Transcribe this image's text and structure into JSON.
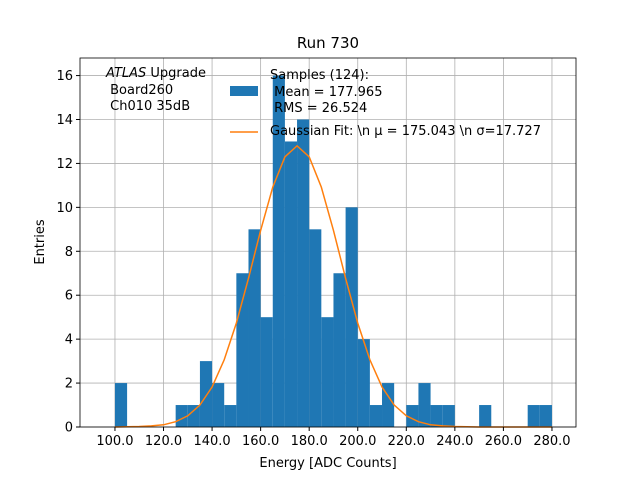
{
  "chart_data": {
    "type": "histogram",
    "title": "Run 730",
    "xlabel": "Energy [ADC Counts]",
    "ylabel": "Entries",
    "annotation": {
      "emphasis": "ATLAS",
      "text": " Upgrade\n Board260\n Ch010 35dB"
    },
    "bins": [
      100,
      105,
      110,
      115,
      120,
      125,
      130,
      135,
      140,
      145,
      150,
      155,
      160,
      165,
      170,
      175,
      180,
      185,
      190,
      195,
      200,
      205,
      210,
      215,
      220,
      225,
      230,
      235,
      240,
      245,
      250,
      255,
      260,
      265,
      270,
      275,
      280
    ],
    "series": [
      {
        "type": "histogram",
        "name": "Samples (124):\n Mean = 177.965\n RMS = 26.524",
        "color": "#1f77b4",
        "values": [
          2,
          0,
          0,
          0,
          0,
          1,
          1,
          3,
          2,
          1,
          7,
          9,
          5,
          16,
          13,
          14,
          9,
          5,
          7,
          10,
          4,
          1,
          2,
          0,
          1,
          2,
          1,
          1,
          0,
          0,
          1,
          0,
          0,
          0,
          1,
          1
        ]
      },
      {
        "type": "line",
        "name": "Gaussian Fit: \\n μ = 175.043 \\n σ=17.727",
        "color": "#ff7f0e",
        "x": [
          100,
          105,
          110,
          115,
          120,
          125,
          130,
          135,
          140,
          145,
          150,
          155,
          160,
          165,
          170,
          175,
          180,
          185,
          190,
          195,
          200,
          205,
          210,
          215,
          220,
          225,
          230,
          235,
          240,
          245,
          250,
          255,
          260,
          265,
          270,
          275,
          280
        ],
        "values": [
          0,
          0.01,
          0.02,
          0.05,
          0.1,
          0.24,
          0.51,
          1.0,
          1.82,
          3.06,
          4.73,
          6.77,
          8.95,
          10.92,
          12.3,
          12.8,
          12.3,
          10.92,
          8.95,
          6.77,
          4.73,
          3.06,
          1.82,
          1.0,
          0.51,
          0.24,
          0.1,
          0.05,
          0.02,
          0.01,
          0,
          0,
          0,
          0,
          0,
          0,
          0
        ]
      }
    ],
    "xlim": [
      85.6,
      289.9
    ],
    "ylim": [
      0,
      16.8
    ],
    "xticks": [
      {
        "value": 100,
        "label": "100.0"
      },
      {
        "value": 120,
        "label": "120.0"
      },
      {
        "value": 140,
        "label": "140.0"
      },
      {
        "value": 160,
        "label": "160.0"
      },
      {
        "value": 180,
        "label": "180.0"
      },
      {
        "value": 200,
        "label": "200.0"
      },
      {
        "value": 220,
        "label": "220.0"
      },
      {
        "value": 240,
        "label": "240.0"
      },
      {
        "value": 260,
        "label": "260.0"
      },
      {
        "value": 280,
        "label": "280.0"
      }
    ],
    "yticks": [
      0,
      2,
      4,
      6,
      8,
      10,
      12,
      14,
      16
    ],
    "grid": true,
    "legend": "upper center"
  }
}
